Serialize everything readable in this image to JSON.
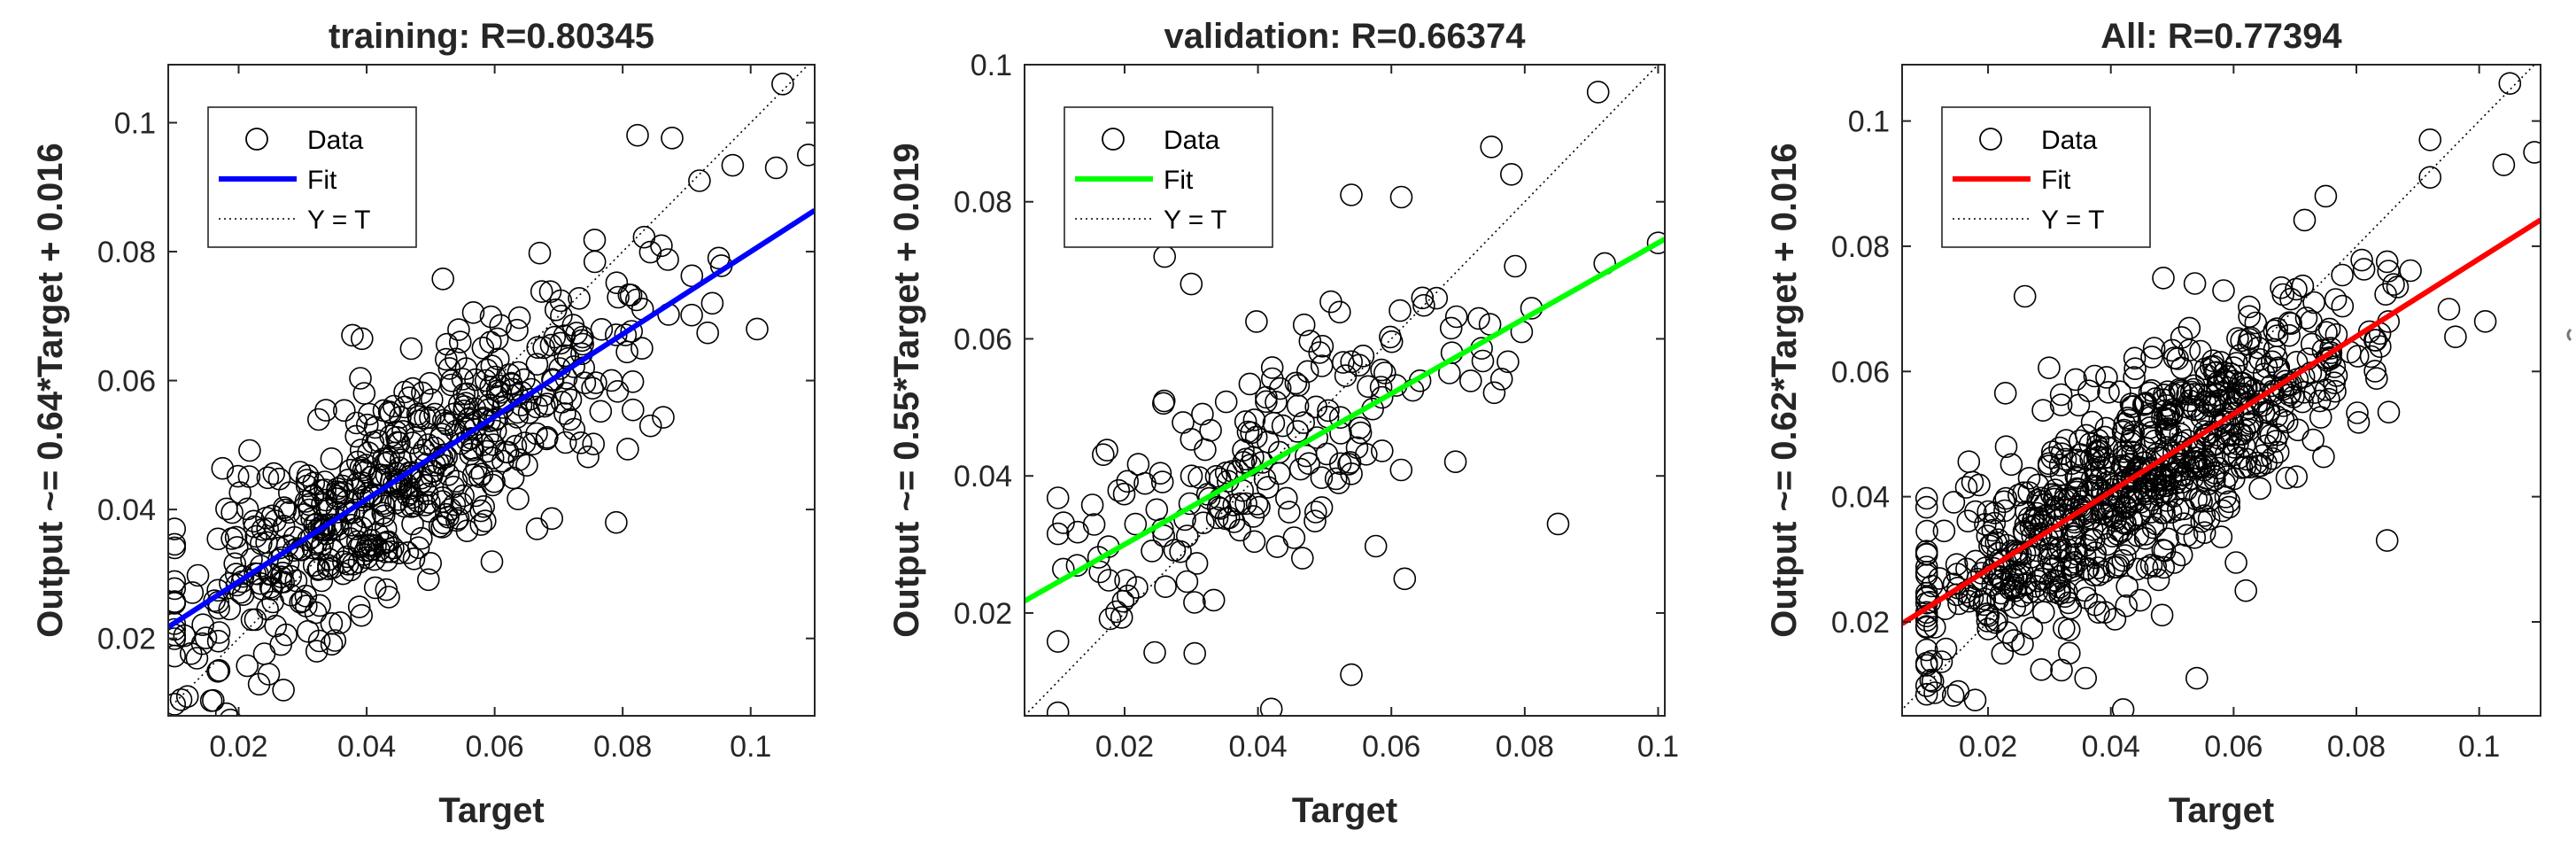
{
  "chart_data": [
    {
      "type": "scatter",
      "title": "training: R=0.80345",
      "xlabel": "Target",
      "ylabel": "Output ~= 0.64*Target + 0.016",
      "xlim": [
        0.009,
        0.11
      ],
      "ylim": [
        0.008,
        0.109
      ],
      "xticks": [
        0.02,
        0.04,
        0.06,
        0.08,
        0.1
      ],
      "yticks": [
        0.02,
        0.04,
        0.06,
        0.08,
        0.1
      ],
      "xtick_labels": [
        "0.02",
        "0.04",
        "0.06",
        "0.08",
        "0.1"
      ],
      "ytick_labels": [
        "0.02",
        "0.04",
        "0.06",
        "0.08",
        "0.1"
      ],
      "legend": [
        {
          "label": "Data",
          "kind": "marker"
        },
        {
          "label": "Fit",
          "kind": "line",
          "color": "#0000ff"
        },
        {
          "label": "Y = T",
          "kind": "dotted"
        }
      ],
      "legend_position": "top-left",
      "fit": {
        "slope": 0.64,
        "intercept": 0.016,
        "color": "#0000ff"
      },
      "points": {
        "n": 560,
        "seed": 11,
        "xmin": 0.01,
        "xmax": 0.108,
        "mean": 0.045,
        "sd": 0.018,
        "noise": 0.0085
      },
      "extra_points": [
        [
          0.01,
          0.0098
        ],
        [
          0.011,
          0.0105
        ],
        [
          0.012,
          0.011
        ],
        [
          0.105,
          0.106
        ],
        [
          0.109,
          0.095
        ],
        [
          0.104,
          0.093
        ],
        [
          0.101,
          0.068
        ],
        [
          0.092,
          0.091
        ],
        [
          0.095,
          0.079
        ],
        [
          0.083,
          0.065
        ],
        [
          0.079,
          0.038
        ],
        [
          0.094,
          0.072
        ],
        [
          0.027,
          0.012
        ]
      ]
    },
    {
      "type": "scatter",
      "title": "validation: R=0.66374",
      "xlabel": "Target",
      "ylabel": "Output ~= 0.55*Target + 0.019",
      "xlim": [
        0.005,
        0.101
      ],
      "ylim": [
        0.005,
        0.1
      ],
      "xticks": [
        0.02,
        0.04,
        0.06,
        0.08,
        0.1
      ],
      "yticks": [
        0.02,
        0.04,
        0.06,
        0.08,
        0.1
      ],
      "xtick_labels": [
        "0.02",
        "0.04",
        "0.06",
        "0.08",
        "0.1"
      ],
      "ytick_labels": [
        "0.02",
        "0.04",
        "0.06",
        "0.08",
        "0.1"
      ],
      "legend": [
        {
          "label": "Data",
          "kind": "marker"
        },
        {
          "label": "Fit",
          "kind": "line",
          "color": "#00ff00"
        },
        {
          "label": "Y = T",
          "kind": "dotted"
        }
      ],
      "legend_position": "top-left",
      "fit": {
        "slope": 0.55,
        "intercept": 0.019,
        "color": "#00ff00"
      },
      "points": {
        "n": 190,
        "seed": 23,
        "xmin": 0.01,
        "xmax": 0.09,
        "mean": 0.04,
        "sd": 0.017,
        "noise": 0.0085
      },
      "extra_points": [
        [
          0.1,
          0.074
        ],
        [
          0.091,
          0.096
        ],
        [
          0.092,
          0.071
        ],
        [
          0.085,
          0.033
        ],
        [
          0.075,
          0.088
        ],
        [
          0.078,
          0.084
        ],
        [
          0.054,
          0.081
        ],
        [
          0.042,
          0.006
        ],
        [
          0.054,
          0.011
        ],
        [
          0.062,
          0.025
        ],
        [
          0.026,
          0.072
        ],
        [
          0.03,
          0.068
        ]
      ]
    },
    {
      "type": "scatter",
      "title": "All: R=0.77394",
      "xlabel": "Target",
      "ylabel": "Output ~= 0.62*Target + 0.016",
      "xlim": [
        0.006,
        0.11
      ],
      "ylim": [
        0.005,
        0.109
      ],
      "xticks": [
        0.02,
        0.04,
        0.06,
        0.08,
        0.1
      ],
      "yticks": [
        0.02,
        0.04,
        0.06,
        0.08,
        0.1
      ],
      "xtick_labels": [
        "0.02",
        "0.04",
        "0.06",
        "0.08",
        "0.1"
      ],
      "ytick_labels": [
        "0.02",
        "0.04",
        "0.06",
        "0.08",
        "0.1"
      ],
      "legend": [
        {
          "label": "Data",
          "kind": "marker"
        },
        {
          "label": "Fit",
          "kind": "line",
          "color": "#ff0000"
        },
        {
          "label": "Y = T",
          "kind": "dotted"
        }
      ],
      "legend_position": "top-left",
      "fit": {
        "slope": 0.62,
        "intercept": 0.016,
        "color": "#ff0000"
      },
      "points": {
        "n": 800,
        "seed": 37,
        "xmin": 0.01,
        "xmax": 0.108,
        "mean": 0.044,
        "sd": 0.018,
        "noise": 0.0085
      },
      "extra_points": [
        [
          0.01,
          0.0098
        ],
        [
          0.011,
          0.0105
        ],
        [
          0.105,
          0.106
        ],
        [
          0.109,
          0.095
        ],
        [
          0.104,
          0.093
        ],
        [
          0.101,
          0.068
        ],
        [
          0.092,
          0.097
        ],
        [
          0.092,
          0.091
        ],
        [
          0.085,
          0.033
        ],
        [
          0.042,
          0.006
        ],
        [
          0.054,
          0.011
        ],
        [
          0.062,
          0.025
        ],
        [
          0.026,
          0.072
        ],
        [
          0.075,
          0.088
        ],
        [
          0.083,
          0.065
        ]
      ]
    }
  ]
}
